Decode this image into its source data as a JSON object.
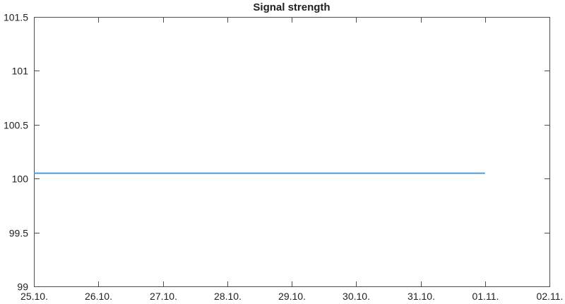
{
  "chart_data": {
    "type": "line",
    "title": "Signal strength",
    "xlabel": "",
    "ylabel": "",
    "x_tick_labels": [
      "25.10.",
      "26.10.",
      "27.10.",
      "28.10.",
      "29.10.",
      "30.10.",
      "31.10.",
      "01.11.",
      "02.11."
    ],
    "x_tick_positions": [
      0,
      1,
      2,
      3,
      4,
      5,
      6,
      7,
      8
    ],
    "y_ticks": [
      99,
      99.5,
      100,
      100.5,
      101,
      101.5
    ],
    "y_tick_labels": [
      "99",
      "99.5",
      "100",
      "100.5",
      "101",
      "101.5"
    ],
    "xlim": [
      0,
      8
    ],
    "ylim": [
      99,
      101.5
    ],
    "grid": false,
    "legend": "none",
    "box": true,
    "tick_direction": "in",
    "series": [
      {
        "name": "signal-strength",
        "x": [
          0,
          7
        ],
        "values": [
          100.05,
          100.05
        ],
        "color": "#4296d6",
        "line_width": 1.8
      }
    ],
    "colors": {
      "axis": "#4d4d4d",
      "text": "#1f1f1f",
      "background": "#ffffff"
    }
  }
}
